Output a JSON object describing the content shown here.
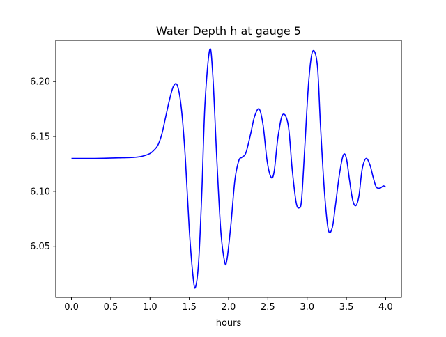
{
  "chart_data": {
    "type": "line",
    "title": "Water Depth h at gauge 5",
    "xlabel": "hours",
    "ylabel": "",
    "xlim": [
      -0.2,
      4.2
    ],
    "ylim": [
      6.0035,
      6.2375
    ],
    "x_ticks": [
      0.0,
      0.5,
      1.0,
      1.5,
      2.0,
      2.5,
      3.0,
      3.5,
      4.0
    ],
    "x_tick_labels": [
      "0.0",
      "0.5",
      "1.0",
      "1.5",
      "2.0",
      "2.5",
      "3.0",
      "3.5",
      "4.0"
    ],
    "y_ticks": [
      6.05,
      6.1,
      6.15,
      6.2
    ],
    "y_tick_labels": [
      "6.05",
      "6.10",
      "6.15",
      "6.20"
    ],
    "grid": false,
    "legend": null,
    "series": [
      {
        "color": "#0000ff",
        "x": [
          0.0,
          0.3,
          0.6,
          0.8,
          0.9,
          1.0,
          1.05,
          1.1,
          1.15,
          1.2,
          1.25,
          1.3,
          1.35,
          1.4,
          1.45,
          1.5,
          1.55,
          1.58,
          1.62,
          1.66,
          1.7,
          1.76,
          1.8,
          1.85,
          1.9,
          1.95,
          1.98,
          2.03,
          2.08,
          2.13,
          2.17,
          2.22,
          2.28,
          2.33,
          2.39,
          2.44,
          2.49,
          2.54,
          2.58,
          2.63,
          2.69,
          2.76,
          2.81,
          2.86,
          2.9,
          2.93,
          2.97,
          3.02,
          3.07,
          3.13,
          3.17,
          3.22,
          3.27,
          3.32,
          3.36,
          3.41,
          3.46,
          3.5,
          3.54,
          3.58,
          3.62,
          3.66,
          3.7,
          3.75,
          3.8,
          3.84,
          3.88,
          3.93,
          3.97,
          4.0
        ],
        "y": [
          6.13,
          6.13,
          6.1305,
          6.131,
          6.132,
          6.1345,
          6.1375,
          6.142,
          6.152,
          6.168,
          6.184,
          6.196,
          6.196,
          6.175,
          6.13,
          6.065,
          6.021,
          6.013,
          6.037,
          6.1,
          6.18,
          6.229,
          6.205,
          6.13,
          6.065,
          6.036,
          6.038,
          6.07,
          6.11,
          6.128,
          6.131,
          6.135,
          6.152,
          6.168,
          6.175,
          6.16,
          6.128,
          6.113,
          6.118,
          6.15,
          6.17,
          6.16,
          6.12,
          6.09,
          6.085,
          6.093,
          6.14,
          6.2,
          6.2275,
          6.215,
          6.16,
          6.1,
          6.065,
          6.067,
          6.087,
          6.115,
          6.133,
          6.13,
          6.11,
          6.092,
          6.087,
          6.096,
          6.12,
          6.13,
          6.124,
          6.113,
          6.104,
          6.103,
          6.105,
          6.104
        ]
      }
    ]
  }
}
